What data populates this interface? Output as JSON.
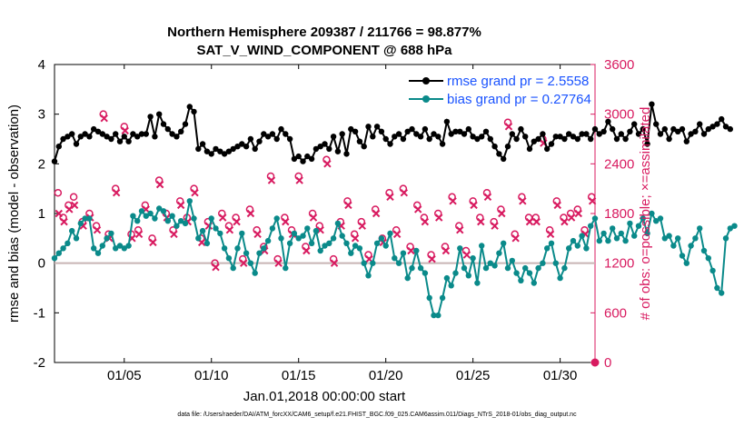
{
  "chart_data": {
    "type": "line",
    "title_line1": "Northern Hemisphere 209387 / 211766 = 98.877%",
    "title_line2": "SAT_V_WIND_COMPONENT @ 688 hPa",
    "xlabel": "Jan.01,2018 00:00:00 start",
    "ylabel_left": "rmse and bias (model - observation)",
    "ylabel_right": "# of obs: o=possible; ×=assimilated",
    "xlim": [
      1,
      32
    ],
    "ylim_left": [
      -2,
      4
    ],
    "ylim_right": [
      0,
      3600
    ],
    "x_ticks": [
      5,
      10,
      15,
      20,
      25,
      30
    ],
    "x_tick_labels": [
      "01/05",
      "01/10",
      "01/15",
      "01/20",
      "01/25",
      "01/30"
    ],
    "y_left_ticks": [
      -2,
      -1,
      0,
      1,
      2,
      3,
      4
    ],
    "y_left_tick_labels": [
      "-2",
      "-1",
      "0",
      "1",
      "2",
      "3",
      "4"
    ],
    "y_right_ticks": [
      0,
      600,
      1200,
      1800,
      2400,
      3000,
      3600
    ],
    "y_right_tick_labels": [
      "0",
      "600",
      "1200",
      "1800",
      "2400",
      "3000",
      "3600"
    ],
    "zero_line": 0,
    "colors": {
      "rmse": "#000000",
      "bias": "#0a8a8a",
      "obs": "#d81b60",
      "zero": "#c8b4b4"
    },
    "legend": [
      {
        "name": "rmse grand pr = 2.5558",
        "color": "#000000"
      },
      {
        "name": "bias grand pr = 0.27764",
        "color": "#0a8a8a"
      }
    ],
    "legend_placement": "top-right",
    "x_start": 1,
    "x_step": 0.25,
    "series": [
      {
        "name": "rmse",
        "values": [
          2.05,
          2.35,
          2.5,
          2.55,
          2.6,
          2.4,
          2.55,
          2.6,
          2.55,
          2.7,
          2.65,
          2.6,
          2.55,
          2.5,
          2.6,
          2.45,
          2.55,
          2.45,
          2.6,
          2.55,
          2.6,
          2.6,
          2.95,
          2.55,
          3.0,
          2.8,
          2.7,
          2.6,
          2.55,
          2.65,
          2.8,
          3.15,
          3.05,
          2.3,
          2.4,
          2.25,
          2.2,
          2.3,
          2.25,
          2.2,
          2.25,
          2.3,
          2.35,
          2.4,
          2.35,
          2.5,
          2.3,
          2.45,
          2.6,
          2.55,
          2.6,
          2.5,
          2.7,
          2.6,
          2.5,
          2.1,
          2.15,
          2.05,
          2.15,
          2.1,
          2.3,
          2.35,
          2.4,
          2.3,
          2.55,
          2.25,
          2.6,
          2.2,
          2.7,
          2.65,
          2.45,
          2.35,
          2.75,
          2.55,
          2.75,
          2.65,
          2.5,
          2.4,
          2.55,
          2.6,
          2.5,
          2.65,
          2.7,
          2.6,
          2.55,
          2.7,
          2.5,
          2.6,
          2.55,
          2.4,
          2.85,
          2.6,
          2.65,
          2.65,
          2.6,
          2.7,
          2.55,
          2.5,
          2.55,
          2.65,
          2.5,
          2.35,
          2.2,
          2.1,
          2.35,
          2.6,
          2.5,
          2.7,
          2.55,
          2.3,
          2.45,
          2.5,
          2.6,
          2.3,
          2.4,
          2.55,
          2.55,
          2.5,
          2.6,
          2.55,
          2.5,
          2.6,
          2.6,
          2.5,
          2.7,
          2.6,
          2.65,
          2.85,
          2.7,
          2.5,
          2.6,
          2.5,
          2.65,
          2.8,
          2.6,
          2.7,
          2.4,
          3.2,
          2.8,
          2.6,
          2.7,
          2.5,
          2.7,
          2.65,
          2.7,
          2.45,
          2.6,
          2.65,
          2.8,
          2.6,
          2.7,
          2.75,
          2.8,
          2.9,
          2.75,
          2.7
        ]
      },
      {
        "name": "bias",
        "values": [
          0.1,
          0.2,
          0.3,
          0.4,
          0.65,
          0.5,
          0.8,
          0.9,
          0.9,
          0.3,
          0.2,
          0.35,
          0.5,
          0.6,
          0.3,
          0.35,
          0.3,
          0.35,
          0.95,
          0.85,
          1.05,
          0.95,
          1.0,
          0.9,
          1.1,
          1.05,
          0.85,
          0.95,
          0.75,
          0.85,
          0.8,
          1.25,
          0.9,
          0.5,
          0.65,
          0.4,
          0.9,
          0.7,
          0.6,
          0.3,
          0.1,
          -0.1,
          0.3,
          0.6,
          0.2,
          0.0,
          -0.2,
          0.2,
          0.3,
          0.45,
          0.7,
          0.9,
          0.5,
          -0.1,
          0.4,
          0.6,
          0.5,
          0.55,
          0.7,
          0.4,
          0.65,
          0.25,
          0.35,
          0.4,
          0.5,
          0.8,
          0.55,
          0.4,
          0.2,
          0.35,
          0.3,
          0.0,
          -0.25,
          0.0,
          0.4,
          0.5,
          0.35,
          0.6,
          0.1,
          0.0,
          0.2,
          -0.3,
          -0.1,
          0.25,
          -0.1,
          -0.2,
          -0.7,
          -1.05,
          -1.05,
          -0.7,
          -0.3,
          -0.45,
          -0.2,
          0.3,
          -0.1,
          -0.25,
          0.1,
          -0.4,
          0.35,
          -0.1,
          0.0,
          -0.05,
          0.2,
          0.4,
          -0.1,
          0.05,
          -0.2,
          -0.35,
          -0.1,
          -0.2,
          -0.4,
          -0.1,
          0.0,
          0.3,
          0.4,
          0.0,
          -0.3,
          -0.1,
          0.3,
          0.45,
          0.35,
          0.55,
          0.3,
          0.75,
          0.9,
          0.45,
          0.6,
          0.45,
          0.7,
          0.5,
          0.6,
          0.45,
          0.8,
          0.55,
          0.75,
          0.9,
          0.6,
          1.0,
          0.85,
          0.9,
          0.5,
          0.55,
          0.35,
          0.5,
          0.15,
          0.0,
          0.35,
          0.5,
          0.7,
          0.25,
          0.1,
          -0.15,
          -0.5,
          -0.6,
          0.5,
          0.7,
          0.75
        ]
      },
      {
        "name": "obs_possible",
        "x": [
          1.2,
          1.5,
          1.8,
          2.1,
          2.6,
          3.0,
          3.4,
          3.8,
          4.1,
          4.5,
          5.0,
          5.4,
          5.8,
          6.2,
          6.6,
          7.0,
          7.4,
          7.8,
          8.2,
          8.6,
          9.0,
          9.4,
          9.8,
          10.2,
          10.6,
          11.0,
          11.4,
          11.8,
          12.2,
          12.6,
          13.0,
          13.4,
          13.8,
          14.2,
          14.6,
          15.0,
          15.4,
          15.8,
          16.2,
          16.6,
          17.0,
          17.4,
          17.8,
          18.2,
          18.6,
          19.0,
          19.4,
          19.8,
          20.2,
          20.6,
          21.0,
          21.4,
          21.8,
          22.2,
          22.6,
          23.0,
          23.4,
          23.8,
          24.2,
          24.6,
          25.0,
          25.4,
          25.8,
          26.2,
          26.6,
          27.0,
          27.4,
          27.8,
          28.2,
          28.6,
          29.0,
          29.4,
          29.8,
          30.2,
          30.6,
          31.0,
          31.4,
          31.8
        ],
        "values": [
          2050,
          1750,
          1900,
          2000,
          1700,
          1800,
          1650,
          3000,
          1550,
          2100,
          2850,
          1550,
          1600,
          1900,
          1500,
          2200,
          1800,
          1600,
          1950,
          1750,
          2100,
          1500,
          1700,
          1200,
          1800,
          1650,
          1750,
          1250,
          1850,
          1600,
          1400,
          2250,
          1250,
          1750,
          1600,
          2250,
          1400,
          1800,
          1650,
          2450,
          1250,
          1700,
          1950,
          1550,
          1700,
          1300,
          1850,
          1500,
          2050,
          1600,
          2100,
          1400,
          1900,
          1750,
          1300,
          1800,
          1400,
          2000,
          1650,
          1350,
          1950,
          1750,
          2050,
          1700,
          1850,
          2900,
          1550,
          2000,
          1750,
          1750,
          2700,
          1600,
          1950,
          1750,
          1800,
          1850,
          1600,
          2000
        ]
      },
      {
        "name": "obs_assimilated",
        "x": [
          1.25,
          1.55,
          1.85,
          2.15,
          2.65,
          3.05,
          3.45,
          3.85,
          4.15,
          4.55,
          5.05,
          5.45,
          5.85,
          6.25,
          6.65,
          7.05,
          7.45,
          7.85,
          8.25,
          8.65,
          9.05,
          9.45,
          9.85,
          10.25,
          10.65,
          11.05,
          11.45,
          11.85,
          12.25,
          12.65,
          13.05,
          13.45,
          13.85,
          14.25,
          14.65,
          15.05,
          15.45,
          15.85,
          16.25,
          16.65,
          17.05,
          17.45,
          17.85,
          18.25,
          18.65,
          19.05,
          19.45,
          19.85,
          20.25,
          20.65,
          21.05,
          21.45,
          21.85,
          22.25,
          22.65,
          23.05,
          23.45,
          23.85,
          24.25,
          24.65,
          25.05,
          25.45,
          25.85,
          26.25,
          26.65,
          27.05,
          27.45,
          27.85,
          28.25,
          28.65,
          29.05,
          29.45,
          29.85,
          30.25,
          30.65,
          31.05,
          31.45,
          31.85
        ],
        "values": [
          1800,
          1700,
          1850,
          1900,
          1650,
          1750,
          1600,
          2950,
          1500,
          2050,
          2800,
          1500,
          1550,
          1850,
          1450,
          2150,
          1750,
          1550,
          1900,
          1700,
          2050,
          1450,
          1650,
          1150,
          1750,
          1600,
          1700,
          1200,
          1800,
          1550,
          1350,
          2200,
          1200,
          1700,
          1550,
          2200,
          1350,
          1750,
          1600,
          2400,
          1200,
          1650,
          1900,
          1500,
          1650,
          1250,
          1800,
          1450,
          2000,
          1550,
          2050,
          1350,
          1850,
          1700,
          1250,
          1750,
          1350,
          1950,
          1600,
          1300,
          1900,
          1700,
          2000,
          1650,
          1800,
          2850,
          1500,
          1950,
          1700,
          1700,
          2650,
          1550,
          1900,
          1700,
          1750,
          1800,
          1550,
          1950
        ]
      }
    ]
  },
  "footer": {
    "data_file": "data file: /Users/raeder/DAI/ATM_forcXX/CAM6_setup/f.e21.FHIST_BGC.f09_025.CAM6assim.011/Diags_NTrS_2018-01/obs_diag_output.nc"
  }
}
